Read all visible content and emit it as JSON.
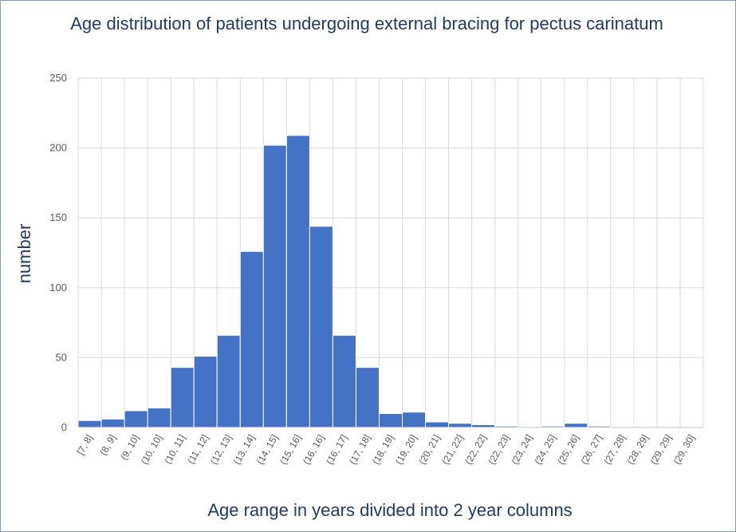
{
  "chart_data": {
    "type": "bar",
    "title": "Age distribution of patients undergoing external bracing for pectus carinatum",
    "xlabel": "Age range in years divided into 2 year columns",
    "ylabel": "number",
    "ylim": [
      0,
      250
    ],
    "yticks": [
      "0",
      "50",
      "100",
      "150",
      "200",
      "250"
    ],
    "grid": true,
    "categories": [
      "[7, 8]",
      "(8, 9]",
      "(9, 10]",
      "(10, 10]",
      "(10, 11]",
      "(11, 12]",
      "(12, 13]",
      "(13, 14]",
      "(14, 15]",
      "(15, 16]",
      "(16, 16]",
      "(16, 17]",
      "(17, 18]",
      "(18, 19]",
      "(19, 20]",
      "(20, 21]",
      "(21, 22]",
      "(22, 22]",
      "(22, 23]",
      "(23, 24]",
      "(24, 25]",
      "(25, 26]",
      "(26, 27]",
      "(27, 28]",
      "(28, 29]",
      "(29, 29]",
      "(29, 30]"
    ],
    "values": [
      5,
      6,
      12,
      14,
      43,
      51,
      66,
      126,
      202,
      209,
      144,
      66,
      43,
      10,
      11,
      4,
      3,
      2,
      1,
      0,
      1,
      3,
      1,
      0,
      0,
      0,
      0
    ],
    "bar_color": "#4472c4",
    "grid_color": "#d9d9d9"
  }
}
